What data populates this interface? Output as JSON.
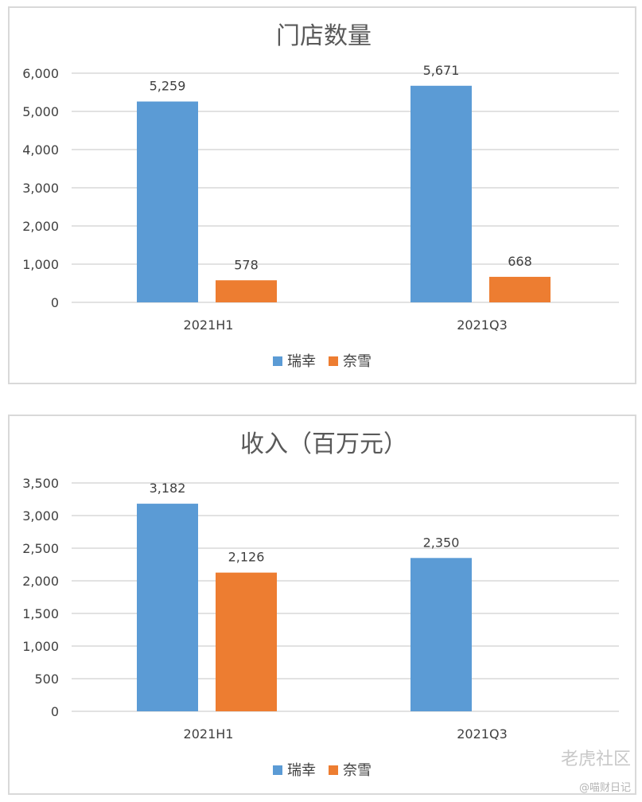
{
  "chart_data": [
    {
      "type": "bar",
      "title": "门店数量",
      "categories": [
        "2021H1",
        "2021Q3"
      ],
      "series": [
        {
          "name": "瑞幸",
          "values": [
            5259,
            5671
          ],
          "labels": [
            "5,259",
            "5,671"
          ]
        },
        {
          "name": "奈雪",
          "values": [
            578,
            668
          ],
          "labels": [
            "578",
            "668"
          ]
        }
      ],
      "ylim": [
        0,
        6000
      ],
      "yticks": [
        0,
        1000,
        2000,
        3000,
        4000,
        5000,
        6000
      ],
      "ytick_labels": [
        "0",
        "1,000",
        "2,000",
        "3,000",
        "4,000",
        "5,000",
        "6,000"
      ],
      "grid": true,
      "legend": "bottom-center"
    },
    {
      "type": "bar",
      "title": "收入（百万元）",
      "categories": [
        "2021H1",
        "2021Q3"
      ],
      "series": [
        {
          "name": "瑞幸",
          "values": [
            3182,
            2350
          ],
          "labels": [
            "3,182",
            "2,350"
          ]
        },
        {
          "name": "奈雪",
          "values": [
            2126,
            null
          ],
          "labels": [
            "2,126",
            ""
          ]
        }
      ],
      "ylim": [
        0,
        3500
      ],
      "yticks": [
        0,
        500,
        1000,
        1500,
        2000,
        2500,
        3000,
        3500
      ],
      "ytick_labels": [
        "0",
        "500",
        "1,000",
        "1,500",
        "2,000",
        "2,500",
        "3,000",
        "3,500"
      ],
      "grid": true,
      "legend": "bottom-center"
    }
  ],
  "colors": {
    "series1": "#5b9bd5",
    "series2": "#ed7d31",
    "grid": "#d9d9d9",
    "text": "#404040",
    "title": "#595959"
  },
  "watermark": {
    "text": "老虎社区",
    "sub": "@喵财日记"
  }
}
